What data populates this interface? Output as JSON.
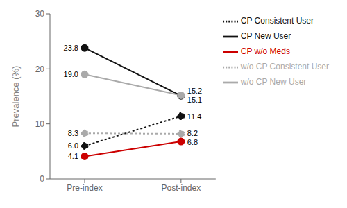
{
  "chart_data": {
    "type": "line",
    "categories": [
      "Pre-index",
      "Post-index"
    ],
    "series": [
      {
        "name": "CP New User",
        "color": "#111111",
        "line_style": "solid",
        "marker": "circle",
        "values": [
          23.8,
          15.1
        ],
        "value_labels": [
          "23.8",
          "15.1"
        ]
      },
      {
        "name": "CP Consistent User",
        "color": "#111111",
        "line_style": "dotted",
        "marker": "circle",
        "values": [
          6.0,
          11.4
        ],
        "value_labels": [
          "6.0",
          "11.4"
        ]
      },
      {
        "name": "w/o CP New User",
        "color": "#aaaaaa",
        "line_style": "solid",
        "marker": "circle",
        "values": [
          19.0,
          15.2
        ],
        "value_labels": [
          "19.0",
          "15.2"
        ]
      },
      {
        "name": "w/o CP Consistent User",
        "color": "#aaaaaa",
        "line_style": "dotted",
        "marker": "circle",
        "values": [
          8.3,
          8.2
        ],
        "value_labels": [
          "8.3",
          "8.2"
        ]
      },
      {
        "name": "CP w/o Meds",
        "color": "#cc0000",
        "line_style": "solid",
        "marker": "circle",
        "values": [
          4.1,
          6.8
        ],
        "value_labels": [
          "4.1",
          "6.8"
        ]
      }
    ],
    "ylabel": "Prevalence (%)",
    "ylim": [
      0,
      30
    ],
    "yticks": [
      0,
      10,
      20,
      30
    ],
    "data_labels": true,
    "legend": "right",
    "grid": false
  }
}
